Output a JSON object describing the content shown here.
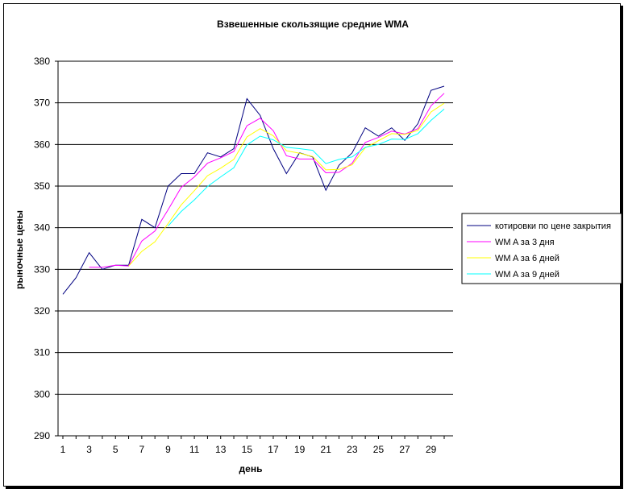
{
  "chart_data": {
    "type": "line",
    "title": "Взвешенные скользящие средние WMA",
    "xlabel": "день",
    "ylabel": "рыночные цены",
    "ylim": [
      290,
      380
    ],
    "yticks": [
      290,
      300,
      310,
      320,
      330,
      340,
      350,
      360,
      370,
      380
    ],
    "xlim": [
      1,
      30
    ],
    "xticks": [
      1,
      3,
      5,
      7,
      9,
      11,
      13,
      15,
      17,
      19,
      21,
      23,
      25,
      27,
      29
    ],
    "grid": "horizontal",
    "legend_position": "right",
    "x": [
      1,
      2,
      3,
      4,
      5,
      6,
      7,
      8,
      9,
      10,
      11,
      12,
      13,
      14,
      15,
      16,
      17,
      18,
      19,
      20,
      21,
      22,
      23,
      24,
      25,
      26,
      27,
      28,
      29,
      30
    ],
    "series": [
      {
        "name": "котировки по цене закрытия",
        "color": "#000080",
        "values": [
          324,
          328,
          334,
          330,
          331,
          331,
          342,
          340,
          350,
          353,
          353,
          358,
          357,
          359,
          371,
          367,
          359,
          353,
          358,
          357,
          349,
          355,
          358,
          364,
          362,
          364,
          361,
          365,
          373,
          374
        ]
      },
      {
        "name": "WM A за 3 дня",
        "color": "#ff00ff",
        "values": [
          null,
          null,
          330.5,
          330.5,
          331,
          330.8,
          336.8,
          339.2,
          344.3,
          349.7,
          352.2,
          355.5,
          356.8,
          358.3,
          364.5,
          366.3,
          363.3,
          357.3,
          356.5,
          356.5,
          353.2,
          353.3,
          355.5,
          360.5,
          361.7,
          363.2,
          362.5,
          363.8,
          369.3,
          372.3
        ]
      },
      {
        "name": "WM A за 6 дней",
        "color": "#ffff00",
        "values": [
          null,
          null,
          null,
          null,
          null,
          330.8,
          334.3,
          336.6,
          341.0,
          345.5,
          348.9,
          352.5,
          354.3,
          356.4,
          361.8,
          363.8,
          362.1,
          358.5,
          357.9,
          357.1,
          353.9,
          354.0,
          355.1,
          359.2,
          360.9,
          362.6,
          362.4,
          363.4,
          367.8,
          369.9
        ]
      },
      {
        "name": "WM A за 9 дней",
        "color": "#00ffff",
        "values": [
          null,
          null,
          null,
          null,
          null,
          null,
          null,
          null,
          340.4,
          343.9,
          346.7,
          349.9,
          352.2,
          354.4,
          359.9,
          362.0,
          361.1,
          359.3,
          359.0,
          358.6,
          355.4,
          356.4,
          357.0,
          359.3,
          360.0,
          361.3,
          361.2,
          362.6,
          365.8,
          368.5
        ]
      }
    ]
  }
}
